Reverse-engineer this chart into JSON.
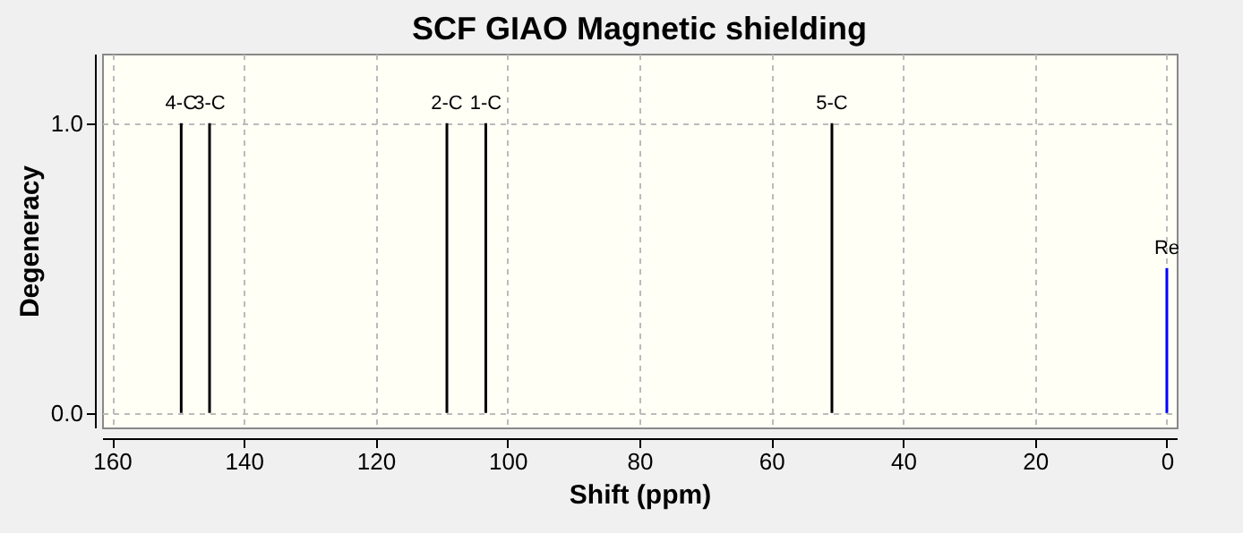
{
  "chart_data": {
    "type": "bar",
    "title": "SCF GIAO Magnetic shielding",
    "xlabel": "Shift (ppm)",
    "ylabel": "Degeneracy",
    "series": [
      {
        "color": "#000000",
        "x": [
          149.5,
          145.2,
          109.2,
          103.3,
          50.8
        ],
        "values": [
          1,
          1,
          1,
          1,
          1
        ]
      },
      {
        "color": "#0000ff",
        "x": [
          0
        ],
        "values": [
          0.5
        ]
      }
    ],
    "xlim": [
      161.5,
      -1.5
    ],
    "xticks": [
      160,
      140,
      120,
      100,
      80,
      60,
      40,
      20,
      0
    ],
    "ylim": [
      -0.05,
      1.24
    ],
    "yticks": [
      {
        "value": 0,
        "label": "0.0"
      },
      {
        "value": 1,
        "label": "1.0"
      }
    ],
    "grid": true,
    "annotations": [
      {
        "text": "4-C",
        "x": 149.5,
        "y": 1
      },
      {
        "text": "3-C",
        "x": 145.2,
        "y": 1
      },
      {
        "text": "2-C",
        "x": 109.2,
        "y": 1
      },
      {
        "text": "1-C",
        "x": 103.3,
        "y": 1
      },
      {
        "text": "5-C",
        "x": 50.8,
        "y": 1
      },
      {
        "text": "Re",
        "x": 0,
        "y": 0.5
      }
    ]
  }
}
